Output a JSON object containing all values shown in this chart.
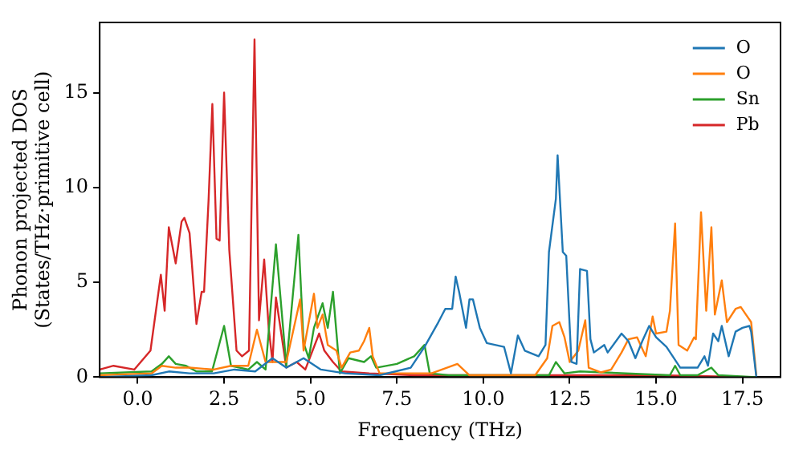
{
  "chart_data": {
    "type": "line",
    "xlabel": "Frequency (THz)",
    "ylabel": "Phonon projected DOS\n(States/THz·primitive cell)",
    "xlim": [
      -1.1,
      18.6
    ],
    "ylim": [
      0,
      18.7
    ],
    "xticks": [
      {
        "value": 0,
        "label": "0.0"
      },
      {
        "value": 2.5,
        "label": "2.5"
      },
      {
        "value": 5,
        "label": "5.0"
      },
      {
        "value": 7.5,
        "label": "7.5"
      },
      {
        "value": 10,
        "label": "10.0"
      },
      {
        "value": 12.5,
        "label": "12.5"
      },
      {
        "value": 15,
        "label": "15.0"
      },
      {
        "value": 17.5,
        "label": "17.5"
      }
    ],
    "yticks": [
      0,
      5,
      10,
      15
    ],
    "grid": false,
    "legend": "top right",
    "marker": "none",
    "line_style": "solid",
    "series": [
      {
        "name": "O",
        "color": "#1f77b4",
        "x": [
          -1.1,
          0.4,
          0.9,
          1.5,
          2.2,
          2.8,
          3.4,
          3.9,
          4.3,
          4.8,
          5.3,
          6,
          7,
          7.9,
          8.3,
          8.7,
          8.9,
          9.1,
          9.2,
          9.3,
          9.5,
          9.6,
          9.7,
          9.9,
          10.1,
          10.6,
          10.8,
          11,
          11.2,
          11.6,
          11.8,
          11.9,
          12.1,
          12.15,
          12.3,
          12.4,
          12.55,
          12.7,
          12.8,
          13,
          13.1,
          13.2,
          13.5,
          13.6,
          14,
          14.2,
          14.4,
          14.6,
          14.8,
          15,
          15.3,
          15.7,
          16.2,
          16.4,
          16.5,
          16.65,
          16.8,
          16.9,
          17.1,
          17.3,
          17.5,
          17.7,
          17.75,
          17.9
        ],
        "values": [
          0,
          0.1,
          0.3,
          0.2,
          0.2,
          0.4,
          0.3,
          1,
          0.5,
          1,
          0.4,
          0.2,
          0.1,
          0.5,
          1.6,
          2.9,
          3.6,
          3.6,
          5.3,
          4.5,
          2.6,
          4.1,
          4.1,
          2.6,
          1.8,
          1.6,
          0.2,
          2.2,
          1.4,
          1.1,
          1.7,
          6.6,
          9.4,
          11.7,
          6.6,
          6.4,
          0.8,
          0.7,
          5.7,
          5.6,
          2,
          1.3,
          1.7,
          1.3,
          2.3,
          1.9,
          1,
          1.9,
          2.7,
          2.1,
          1.6,
          0.5,
          0.5,
          1.1,
          0.6,
          2.3,
          1.9,
          2.7,
          1.1,
          2.4,
          2.6,
          2.7,
          2.4,
          0
        ]
      },
      {
        "name": "O",
        "color": "#ff7f0e",
        "x": [
          -1.1,
          0.4,
          0.7,
          1.1,
          1.5,
          2.2,
          2.7,
          3.2,
          3.45,
          3.7,
          4.3,
          4.7,
          4.8,
          5.1,
          5.2,
          5.35,
          5.5,
          5.75,
          5.9,
          6.15,
          6.4,
          6.55,
          6.7,
          6.8,
          7,
          8.5,
          9.25,
          9.6,
          11.5,
          11.85,
          12,
          12.2,
          12.35,
          12.5,
          12.75,
          12.95,
          13.05,
          13.4,
          13.7,
          14,
          14.2,
          14.45,
          14.7,
          14.9,
          15,
          15.3,
          15.4,
          15.55,
          15.65,
          15.9,
          16.1,
          16.15,
          16.3,
          16.45,
          16.6,
          16.7,
          16.9,
          17.05,
          17.3,
          17.45,
          17.6,
          17.75,
          17.9
        ],
        "values": [
          0.1,
          0.2,
          0.6,
          0.5,
          0.5,
          0.4,
          0.6,
          0.6,
          2.5,
          0.8,
          0.8,
          4.1,
          1.4,
          4.4,
          2.6,
          3.3,
          1.7,
          1.4,
          0.5,
          1.3,
          1.4,
          1.9,
          2.6,
          1.1,
          0.2,
          0.2,
          0.7,
          0.1,
          0.1,
          1,
          2.7,
          2.9,
          2.1,
          0.8,
          1.4,
          3,
          0.5,
          0.25,
          0.4,
          1.3,
          2,
          2.1,
          1.1,
          3.2,
          2.3,
          2.4,
          3.5,
          8.1,
          1.7,
          1.4,
          2.1,
          2,
          8.7,
          3.5,
          7.9,
          3.3,
          5.1,
          2.9,
          3.6,
          3.7,
          3.3,
          2.9,
          0.1
        ]
      },
      {
        "name": "Sn",
        "color": "#2ca02c",
        "x": [
          -1.1,
          0.4,
          0.7,
          0.9,
          1.1,
          1.4,
          1.7,
          2.15,
          2.5,
          2.7,
          3.2,
          3.45,
          3.7,
          4,
          4.3,
          4.65,
          4.8,
          4.95,
          5.1,
          5.35,
          5.5,
          5.65,
          5.85,
          6.1,
          6.55,
          6.75,
          6.9,
          7.5,
          8,
          8.3,
          8.45,
          9,
          11.9,
          12.1,
          12.35,
          12.8,
          15.4,
          15.55,
          15.7,
          16.2,
          16.6,
          16.8,
          17.9
        ],
        "values": [
          0.2,
          0.3,
          0.7,
          1.1,
          0.7,
          0.6,
          0.3,
          0.3,
          2.7,
          0.6,
          0.4,
          0.8,
          0.4,
          7,
          0.6,
          7.5,
          1.8,
          1,
          2.6,
          3.9,
          2.6,
          4.5,
          0.2,
          1,
          0.8,
          1.1,
          0.5,
          0.7,
          1.1,
          1.7,
          0.2,
          0.1,
          0.1,
          0.8,
          0.2,
          0.3,
          0.1,
          0.6,
          0.1,
          0.1,
          0.5,
          0.1,
          0
        ]
      },
      {
        "name": "Pb",
        "color": "#d62728",
        "x": [
          -1.1,
          -0.7,
          -0.1,
          0.37,
          0.67,
          0.78,
          0.9,
          1.1,
          1.27,
          1.35,
          1.5,
          1.7,
          1.85,
          1.92,
          2.05,
          2.16,
          2.28,
          2.37,
          2.5,
          2.65,
          2.86,
          3.02,
          3.22,
          3.38,
          3.51,
          3.66,
          3.79,
          3.9,
          4,
          4.3,
          4.6,
          4.85,
          5.25,
          5.4,
          5.65,
          5.9,
          6.7,
          8,
          12,
          15,
          17.9
        ],
        "values": [
          0.4,
          0.6,
          0.4,
          1.4,
          5.4,
          3.5,
          7.9,
          6,
          8.2,
          8.4,
          7.6,
          2.8,
          4.5,
          4.5,
          9.3,
          14.4,
          7.3,
          7.2,
          15,
          6.7,
          1.4,
          1.1,
          1.4,
          17.8,
          3,
          6.2,
          2.6,
          0.8,
          4.2,
          0.5,
          0.8,
          0.4,
          2.3,
          1.4,
          0.8,
          0.3,
          0.2,
          0.1,
          0.1,
          0.1,
          0
        ]
      }
    ]
  }
}
